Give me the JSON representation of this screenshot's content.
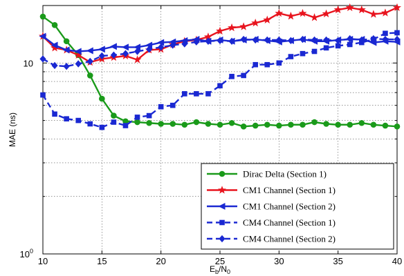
{
  "chart_data": {
    "type": "line",
    "title": "",
    "xlabel": "E_b/N_0",
    "xlabel_main": "E",
    "xlabel_sub1": "b",
    "xlabel_mid": "/N",
    "xlabel_sub2": "0",
    "ylabel": "MAE (ns)",
    "xlim": [
      10,
      40
    ],
    "ylim": [
      1,
      20
    ],
    "yscale": "log",
    "grid": true,
    "legend_position": "bottom-right",
    "x_ticks": [
      "10",
      "15",
      "20",
      "25",
      "30",
      "35",
      "40"
    ],
    "y_ticks": [
      {
        "base": "10",
        "exp": "0",
        "value": 1
      },
      {
        "base": "10",
        "exp": "",
        "value": 10
      }
    ],
    "x": [
      10,
      11,
      12,
      13,
      14,
      15,
      16,
      17,
      18,
      19,
      20,
      21,
      22,
      23,
      24,
      25,
      26,
      27,
      28,
      29,
      30,
      31,
      32,
      33,
      34,
      35,
      36,
      37,
      38,
      39,
      40
    ],
    "series": [
      {
        "name": "Dirac Delta (Section 1)",
        "color": "#1a9a1a",
        "line_style": "solid",
        "marker": "circle",
        "values": [
          17.5,
          15.8,
          13.0,
          11.0,
          8.6,
          6.5,
          5.3,
          4.95,
          4.9,
          4.85,
          4.8,
          4.8,
          4.75,
          4.9,
          4.8,
          4.75,
          4.85,
          4.65,
          4.7,
          4.75,
          4.7,
          4.75,
          4.75,
          4.9,
          4.8,
          4.75,
          4.75,
          4.85,
          4.75,
          4.7,
          4.65
        ]
      },
      {
        "name": "CM1 Channel (Section 1)",
        "color": "#e8141e",
        "line_style": "solid",
        "marker": "star",
        "values": [
          13.8,
          12.0,
          11.7,
          11.0,
          10.1,
          10.5,
          10.7,
          10.9,
          10.4,
          11.7,
          11.8,
          12.5,
          13.0,
          13.2,
          13.7,
          14.7,
          15.3,
          15.5,
          16.2,
          16.8,
          18.2,
          17.6,
          18.2,
          17.3,
          18.1,
          19.0,
          19.5,
          19.0,
          18.0,
          18.3,
          19.5
        ]
      },
      {
        "name": "CM1 Channel (Section 2)",
        "color": "#1a28d2",
        "line_style": "solid",
        "marker": "triangle-left",
        "values": [
          13.8,
          12.4,
          11.7,
          11.5,
          11.6,
          11.8,
          12.2,
          12.1,
          12.1,
          12.4,
          12.8,
          12.9,
          13.1,
          13.3,
          13.0,
          13.2,
          13.0,
          13.2,
          13.3,
          13.1,
          12.9,
          13.1,
          13.3,
          13.0,
          13.0,
          13.2,
          13.3,
          13.3,
          12.8,
          13.0,
          12.9
        ]
      },
      {
        "name": "CM4 Channel (Section 1)",
        "color": "#1a28d2",
        "line_style": "dashed",
        "marker": "square",
        "values": [
          6.8,
          5.4,
          5.1,
          5.0,
          4.8,
          4.6,
          4.9,
          4.7,
          5.2,
          5.3,
          5.9,
          6.0,
          6.9,
          6.9,
          6.9,
          7.6,
          8.5,
          8.6,
          9.8,
          9.8,
          10.0,
          10.8,
          11.2,
          11.5,
          12.0,
          12.3,
          12.5,
          12.8,
          13.3,
          14.3,
          14.4
        ]
      },
      {
        "name": "CM4 Channel (Section 2)",
        "color": "#1a28d2",
        "line_style": "dashed",
        "marker": "diamond",
        "values": [
          10.5,
          9.7,
          9.6,
          9.9,
          10.2,
          10.9,
          11.0,
          11.2,
          11.5,
          11.8,
          12.1,
          12.4,
          12.6,
          12.9,
          13.0,
          13.1,
          13.0,
          13.3,
          13.2,
          13.2,
          13.2,
          13.1,
          13.3,
          13.2,
          13.2,
          13.1,
          13.4,
          13.2,
          13.4,
          13.3,
          13.3
        ]
      }
    ]
  }
}
